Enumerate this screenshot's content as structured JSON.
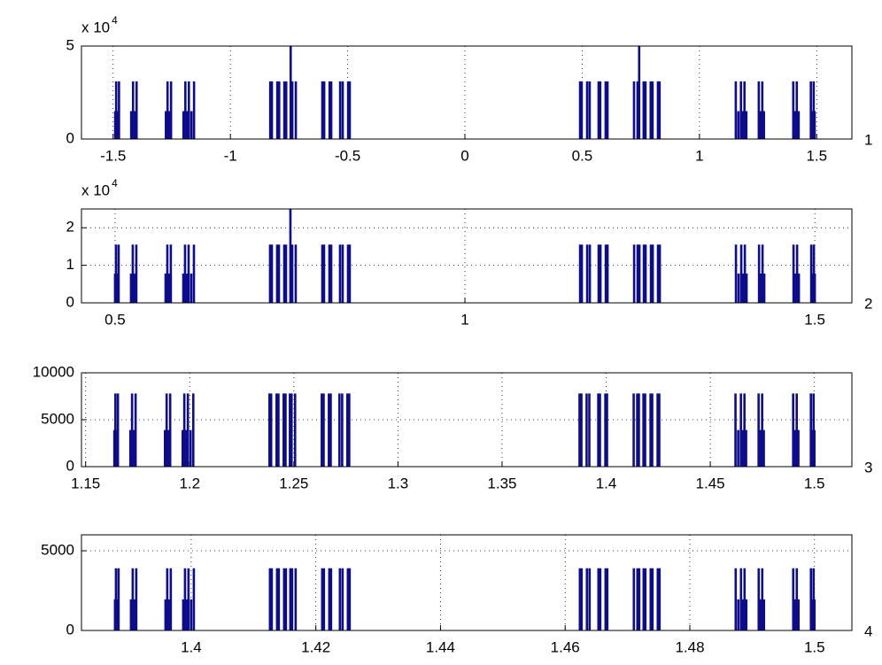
{
  "chart_data": [
    {
      "type": "spike",
      "panel_label": "1",
      "y_scale": "x 10",
      "y_scale_exponent": "4",
      "grid": true,
      "color": "#0c0c8c",
      "xlim": [
        -1.635,
        1.65
      ],
      "xticks": [
        -1.5,
        -1,
        -0.5,
        0,
        0.5,
        1,
        1.5
      ],
      "ylim": [
        0,
        5
      ],
      "yticks": [
        0,
        5
      ],
      "x": [
        -1.491,
        -1.487,
        -1.479,
        -1.475,
        -1.423,
        -1.415,
        -1.408,
        -1.4,
        -1.275,
        -1.268,
        -1.26,
        -1.253,
        -1.2,
        -1.192,
        -1.185,
        -1.177,
        -1.166,
        -1.155,
        -0.83,
        -0.823,
        -0.8,
        -0.792,
        -0.77,
        -0.762,
        -0.743,
        -0.736,
        -0.721,
        -0.608,
        -0.6,
        -0.577,
        -0.57,
        -0.532,
        -0.521,
        -0.498,
        -0.491,
        0.491,
        0.498,
        0.521,
        0.532,
        0.57,
        0.577,
        0.6,
        0.608,
        0.721,
        0.736,
        0.743,
        0.762,
        0.77,
        0.792,
        0.8,
        0.823,
        0.83,
        1.155,
        1.166,
        1.177,
        1.185,
        1.192,
        1.2,
        1.253,
        1.26,
        1.268,
        1.275,
        1.4,
        1.408,
        1.415,
        1.423,
        1.475,
        1.479,
        1.487,
        1.491
      ],
      "values": [
        1.5,
        3.1,
        1.5,
        3.1,
        1.5,
        3.1,
        1.5,
        3.1,
        1.5,
        3.1,
        1.5,
        3.1,
        1.5,
        3.1,
        1.5,
        3.1,
        1.5,
        3.1,
        3.1,
        3.1,
        3.1,
        3.1,
        3.1,
        3.1,
        6.2,
        3.1,
        3.1,
        3.1,
        3.1,
        3.1,
        3.1,
        3.1,
        3.1,
        3.1,
        3.1,
        3.1,
        3.1,
        3.1,
        3.1,
        3.1,
        3.1,
        3.1,
        3.1,
        3.1,
        3.1,
        6.2,
        3.1,
        3.1,
        3.1,
        3.1,
        3.1,
        3.1,
        3.1,
        1.5,
        3.1,
        1.5,
        3.1,
        1.5,
        3.1,
        1.5,
        3.1,
        1.5,
        3.1,
        1.5,
        3.1,
        1.5,
        3.1,
        1.5,
        3.1,
        1.5
      ]
    },
    {
      "type": "spike",
      "panel_label": "2",
      "y_scale": "x 10",
      "y_scale_exponent": "4",
      "grid": true,
      "color": "#0c0c8c",
      "xlim": [
        0.452,
        1.553
      ],
      "xticks": [
        0.5,
        1,
        1.5
      ],
      "ylim": [
        0,
        2.5
      ],
      "yticks": [
        0,
        1,
        2
      ],
      "x": [
        0.5,
        0.5013,
        0.5038,
        0.5051,
        0.5228,
        0.5253,
        0.5278,
        0.5304,
        0.5722,
        0.5747,
        0.5772,
        0.5797,
        0.5975,
        0.6,
        0.6025,
        0.6051,
        0.6089,
        0.6127,
        0.7215,
        0.7241,
        0.7316,
        0.7342,
        0.7418,
        0.7443,
        0.7506,
        0.7532,
        0.7582,
        0.7962,
        0.7987,
        0.8063,
        0.8089,
        0.8215,
        0.8253,
        0.8329,
        0.8354,
        1.1646,
        1.1671,
        1.1747,
        1.1785,
        1.1911,
        1.1937,
        1.2013,
        1.2038,
        1.2418,
        1.2468,
        1.2494,
        1.2557,
        1.2582,
        1.2658,
        1.2684,
        1.2759,
        1.2785,
        1.3873,
        1.3911,
        1.3949,
        1.3975,
        1.4,
        1.4025,
        1.4203,
        1.4228,
        1.4253,
        1.4278,
        1.4696,
        1.4722,
        1.4747,
        1.4772,
        1.4949,
        1.4962,
        1.4987,
        1.5
      ],
      "values": [
        0.78,
        1.55,
        0.78,
        1.55,
        0.78,
        1.55,
        0.78,
        1.55,
        0.78,
        1.55,
        0.78,
        1.55,
        0.78,
        1.55,
        0.78,
        1.55,
        0.78,
        1.55,
        1.55,
        1.55,
        1.55,
        1.55,
        1.55,
        1.55,
        3.1,
        1.55,
        1.55,
        1.55,
        1.55,
        1.55,
        1.55,
        1.55,
        1.55,
        1.55,
        1.55,
        1.55,
        1.55,
        1.55,
        1.55,
        1.55,
        1.55,
        1.55,
        1.55,
        1.55,
        1.55,
        1.55,
        1.55,
        1.55,
        1.55,
        1.55,
        1.55,
        1.55,
        1.55,
        0.78,
        1.55,
        0.78,
        1.55,
        0.78,
        1.55,
        0.78,
        1.55,
        0.78,
        1.55,
        0.78,
        1.55,
        0.78,
        1.55,
        0.78,
        1.55,
        0.78
      ]
    },
    {
      "type": "spike",
      "panel_label": "3",
      "grid": true,
      "color": "#0c0c8c",
      "xlim": [
        1.148,
        1.518
      ],
      "xticks": [
        1.15,
        1.2,
        1.25,
        1.3,
        1.35,
        1.4,
        1.45,
        1.5
      ],
      "ylim": [
        0,
        10000
      ],
      "yticks": [
        0,
        5000,
        10000
      ],
      "x": [
        1.1638,
        1.1643,
        1.1651,
        1.1655,
        1.1715,
        1.1723,
        1.1732,
        1.174,
        1.1881,
        1.1889,
        1.1898,
        1.1906,
        1.1966,
        1.1974,
        1.1983,
        1.1991,
        1.2004,
        1.2017,
        1.2383,
        1.2391,
        1.2417,
        1.2426,
        1.2451,
        1.246,
        1.2481,
        1.2489,
        1.2506,
        1.2634,
        1.2643,
        1.2668,
        1.2677,
        1.2719,
        1.2732,
        1.2757,
        1.2766,
        1.3872,
        1.3881,
        1.3906,
        1.3919,
        1.3962,
        1.397,
        1.3996,
        1.4004,
        1.4132,
        1.4149,
        1.4157,
        1.4179,
        1.4187,
        1.4213,
        1.4221,
        1.4247,
        1.4255,
        1.4621,
        1.4634,
        1.4647,
        1.4655,
        1.4664,
        1.4672,
        1.4732,
        1.474,
        1.4749,
        1.4757,
        1.4898,
        1.4906,
        1.4915,
        1.4923,
        1.4983,
        1.4987,
        1.4996,
        1.5
      ],
      "values": [
        3900,
        7800,
        3900,
        7800,
        3900,
        7800,
        3900,
        7800,
        3900,
        7800,
        3900,
        7800,
        3900,
        7800,
        3900,
        7800,
        3900,
        7800,
        7800,
        7800,
        7800,
        7800,
        7800,
        7800,
        7800,
        7800,
        7800,
        7800,
        7800,
        7800,
        7800,
        7800,
        7800,
        7800,
        7800,
        7800,
        7800,
        7800,
        7800,
        7800,
        7800,
        7800,
        7800,
        7800,
        7800,
        7800,
        7800,
        7800,
        7800,
        7800,
        7800,
        7800,
        7800,
        3900,
        7800,
        3900,
        7800,
        3900,
        7800,
        3900,
        7800,
        3900,
        7800,
        3900,
        7800,
        3900,
        7800,
        3900,
        7800,
        3900
      ]
    },
    {
      "type": "spike",
      "panel_label": "4",
      "grid": true,
      "color": "#0c0c8c",
      "xlim": [
        1.3824,
        1.506
      ],
      "xticks": [
        1.4,
        1.42,
        1.44,
        1.46,
        1.48,
        1.5
      ],
      "ylim": [
        0,
        6000
      ],
      "yticks": [
        0,
        5000
      ],
      "x": [
        1.38778,
        1.38793,
        1.38821,
        1.38835,
        1.39034,
        1.39062,
        1.39091,
        1.39119,
        1.39588,
        1.39616,
        1.39645,
        1.39673,
        1.39872,
        1.39901,
        1.39929,
        1.39957,
        1.4,
        1.40043,
        1.41264,
        1.41293,
        1.41378,
        1.41406,
        1.41491,
        1.4152,
        1.41591,
        1.41619,
        1.41676,
        1.42102,
        1.4213,
        1.42216,
        1.42244,
        1.42386,
        1.42429,
        1.42514,
        1.42543,
        1.46236,
        1.46264,
        1.46349,
        1.46392,
        1.46534,
        1.46563,
        1.46648,
        1.46676,
        1.47102,
        1.47159,
        1.47188,
        1.47259,
        1.47287,
        1.47372,
        1.47401,
        1.47486,
        1.47514,
        1.48736,
        1.48778,
        1.48821,
        1.48849,
        1.48878,
        1.48906,
        1.49105,
        1.49134,
        1.49162,
        1.4919,
        1.49659,
        1.49688,
        1.49716,
        1.49744,
        1.49943,
        1.49957,
        1.49986,
        1.5
      ],
      "values": [
        1950,
        3900,
        1950,
        3900,
        1950,
        3900,
        1950,
        3900,
        1950,
        3900,
        1950,
        3900,
        1950,
        3900,
        1950,
        3900,
        1950,
        3900,
        3900,
        3900,
        3900,
        3900,
        3900,
        3900,
        3900,
        3900,
        3900,
        3900,
        3900,
        3900,
        3900,
        3900,
        3900,
        3900,
        3900,
        3900,
        3900,
        3900,
        3900,
        3900,
        3900,
        3900,
        3900,
        3900,
        3900,
        3900,
        3900,
        3900,
        3900,
        3900,
        3900,
        3900,
        3900,
        1950,
        3900,
        1950,
        3900,
        1950,
        3900,
        1950,
        3900,
        1950,
        3900,
        1950,
        3900,
        1950,
        3900,
        1950,
        3900,
        1950
      ]
    }
  ]
}
